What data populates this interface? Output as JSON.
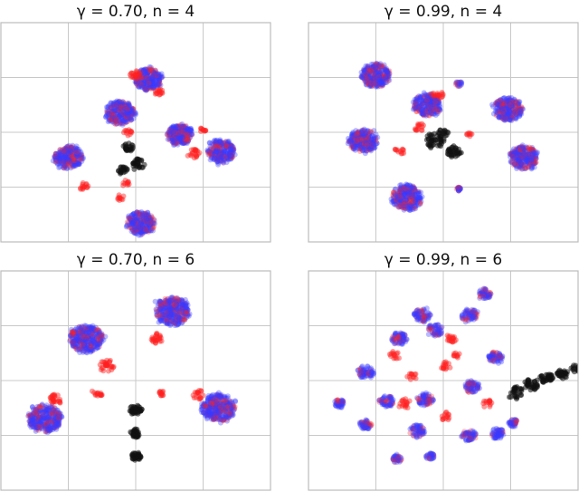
{
  "chart_data": [
    {
      "type": "scatter",
      "title": "γ = 0.70, n = 4",
      "grid": true,
      "colors": {
        "blue": "#3a3aff",
        "red": "#ff2020",
        "black": "#111111"
      },
      "clusters": [
        {
          "color": "blue",
          "cx": -0.3,
          "cy": 0.45,
          "r": 0.28,
          "count": 220
        },
        {
          "color": "blue",
          "cx": 0.25,
          "cy": 1.25,
          "r": 0.26,
          "count": 200
        },
        {
          "color": "blue",
          "cx": 0.85,
          "cy": -0.05,
          "r": 0.24,
          "count": 200
        },
        {
          "color": "blue",
          "cx": 1.65,
          "cy": -0.45,
          "r": 0.27,
          "count": 200
        },
        {
          "color": "blue",
          "cx": -1.3,
          "cy": -0.6,
          "r": 0.27,
          "count": 200
        },
        {
          "color": "blue",
          "cx": 0.1,
          "cy": -2.15,
          "r": 0.27,
          "count": 200
        },
        {
          "color": "red",
          "cx": 0.0,
          "cy": 1.35,
          "r": 0.12,
          "count": 20
        },
        {
          "color": "red",
          "cx": 0.45,
          "cy": 0.95,
          "r": 0.08,
          "count": 15
        },
        {
          "color": "red",
          "cx": 1.1,
          "cy": -0.5,
          "r": 0.12,
          "count": 20
        },
        {
          "color": "red",
          "cx": -1.0,
          "cy": -1.3,
          "r": 0.1,
          "count": 14
        },
        {
          "color": "red",
          "cx": -0.2,
          "cy": -1.2,
          "r": 0.08,
          "count": 10
        },
        {
          "color": "red",
          "cx": -0.15,
          "cy": 0.0,
          "r": 0.08,
          "count": 12
        },
        {
          "color": "red",
          "cx": 1.3,
          "cy": 0.05,
          "r": 0.07,
          "count": 10
        },
        {
          "color": "red",
          "cx": -0.3,
          "cy": -1.55,
          "r": 0.08,
          "count": 10
        },
        {
          "color": "black",
          "cx": -0.15,
          "cy": -0.35,
          "r": 0.1,
          "count": 25
        },
        {
          "color": "black",
          "cx": 0.05,
          "cy": -0.75,
          "r": 0.12,
          "count": 30
        },
        {
          "color": "black",
          "cx": -0.25,
          "cy": -0.9,
          "r": 0.09,
          "count": 20
        }
      ]
    },
    {
      "type": "scatter",
      "title": "γ = 0.99, n = 4",
      "grid": true,
      "colors": {
        "blue": "#3a3aff",
        "red": "#ff2020",
        "black": "#111111"
      },
      "clusters": [
        {
          "color": "blue",
          "cx": -1.3,
          "cy": 1.35,
          "r": 0.28,
          "count": 220
        },
        {
          "color": "blue",
          "cx": -0.3,
          "cy": 0.65,
          "r": 0.27,
          "count": 200
        },
        {
          "color": "blue",
          "cx": 1.25,
          "cy": 0.55,
          "r": 0.27,
          "count": 200
        },
        {
          "color": "blue",
          "cx": -1.55,
          "cy": -0.2,
          "r": 0.27,
          "count": 200
        },
        {
          "color": "blue",
          "cx": 1.55,
          "cy": -0.6,
          "r": 0.27,
          "count": 200
        },
        {
          "color": "blue",
          "cx": -0.7,
          "cy": -1.55,
          "r": 0.29,
          "count": 220
        },
        {
          "color": "blue",
          "cx": 0.3,
          "cy": 1.15,
          "r": 0.06,
          "count": 15
        },
        {
          "color": "blue",
          "cx": 0.3,
          "cy": -1.35,
          "r": 0.05,
          "count": 15
        },
        {
          "color": "red",
          "cx": -0.1,
          "cy": 0.9,
          "r": 0.1,
          "count": 15
        },
        {
          "color": "red",
          "cx": -0.45,
          "cy": 0.1,
          "r": 0.1,
          "count": 15
        },
        {
          "color": "red",
          "cx": -0.85,
          "cy": -0.45,
          "r": 0.1,
          "count": 12
        },
        {
          "color": "red",
          "cx": 0.5,
          "cy": -0.05,
          "r": 0.06,
          "count": 8
        },
        {
          "color": "black",
          "cx": -0.15,
          "cy": -0.2,
          "r": 0.18,
          "count": 45
        },
        {
          "color": "black",
          "cx": 0.2,
          "cy": -0.45,
          "r": 0.14,
          "count": 35
        },
        {
          "color": "black",
          "cx": 0.0,
          "cy": 0.0,
          "r": 0.1,
          "count": 15
        }
      ]
    },
    {
      "type": "scatter",
      "title": "γ = 0.70, n = 6",
      "grid": true,
      "colors": {
        "blue": "#3a3aff",
        "red": "#ff2020",
        "black": "#111111"
      },
      "clusters": [
        {
          "color": "blue",
          "cx": -0.95,
          "cy": 1.0,
          "r": 0.32,
          "count": 260
        },
        {
          "color": "blue",
          "cx": 0.7,
          "cy": 1.65,
          "r": 0.32,
          "count": 260
        },
        {
          "color": "blue",
          "cx": -1.75,
          "cy": -0.9,
          "r": 0.32,
          "count": 260
        },
        {
          "color": "blue",
          "cx": 1.6,
          "cy": -0.65,
          "r": 0.32,
          "count": 260
        },
        {
          "color": "red",
          "cx": -0.55,
          "cy": 0.35,
          "r": 0.15,
          "count": 30
        },
        {
          "color": "red",
          "cx": 0.4,
          "cy": 1.0,
          "r": 0.12,
          "count": 25
        },
        {
          "color": "red",
          "cx": -1.55,
          "cy": -0.45,
          "r": 0.12,
          "count": 25
        },
        {
          "color": "red",
          "cx": -0.75,
          "cy": -0.3,
          "r": 0.1,
          "count": 15
        },
        {
          "color": "red",
          "cx": 0.5,
          "cy": -0.3,
          "r": 0.06,
          "count": 12
        },
        {
          "color": "red",
          "cx": 1.2,
          "cy": -0.35,
          "r": 0.12,
          "count": 18
        },
        {
          "color": "black",
          "cx": 0.0,
          "cy": -0.7,
          "r": 0.12,
          "count": 40
        },
        {
          "color": "black",
          "cx": 0.0,
          "cy": -1.25,
          "r": 0.1,
          "count": 35
        },
        {
          "color": "black",
          "cx": 0.0,
          "cy": -1.8,
          "r": 0.1,
          "count": 35
        }
      ]
    },
    {
      "type": "scatter",
      "title": "γ = 0.99, n = 6",
      "grid": true,
      "colors": {
        "blue": "#3a3aff",
        "red": "#ff2020",
        "black": "#111111"
      },
      "clusters": [
        {
          "color": "blue",
          "cx": 0.8,
          "cy": 2.05,
          "r": 0.12,
          "count": 40
        },
        {
          "color": "blue",
          "cx": -0.4,
          "cy": 1.55,
          "r": 0.16,
          "count": 55
        },
        {
          "color": "blue",
          "cx": 0.5,
          "cy": 1.55,
          "r": 0.16,
          "count": 55
        },
        {
          "color": "blue",
          "cx": -0.85,
          "cy": 1.0,
          "r": 0.15,
          "count": 55
        },
        {
          "color": "blue",
          "cx": -0.15,
          "cy": 1.2,
          "r": 0.14,
          "count": 45
        },
        {
          "color": "blue",
          "cx": 1.0,
          "cy": 0.55,
          "r": 0.14,
          "count": 50
        },
        {
          "color": "blue",
          "cx": -1.5,
          "cy": 0.2,
          "r": 0.15,
          "count": 55
        },
        {
          "color": "blue",
          "cx": -1.1,
          "cy": -0.5,
          "r": 0.14,
          "count": 45
        },
        {
          "color": "blue",
          "cx": -0.35,
          "cy": -0.45,
          "r": 0.15,
          "count": 55
        },
        {
          "color": "blue",
          "cx": 0.55,
          "cy": -0.15,
          "r": 0.14,
          "count": 50
        },
        {
          "color": "blue",
          "cx": -2.0,
          "cy": -0.55,
          "r": 0.1,
          "count": 35
        },
        {
          "color": "blue",
          "cx": -1.5,
          "cy": -1.05,
          "r": 0.12,
          "count": 40
        },
        {
          "color": "blue",
          "cx": -0.5,
          "cy": -1.2,
          "r": 0.15,
          "count": 50
        },
        {
          "color": "blue",
          "cx": 0.5,
          "cy": -1.3,
          "r": 0.14,
          "count": 50
        },
        {
          "color": "blue",
          "cx": 1.05,
          "cy": -1.25,
          "r": 0.13,
          "count": 45
        },
        {
          "color": "blue",
          "cx": 1.35,
          "cy": -1.0,
          "r": 0.09,
          "count": 30
        },
        {
          "color": "blue",
          "cx": -0.9,
          "cy": -1.85,
          "r": 0.1,
          "count": 30
        },
        {
          "color": "blue",
          "cx": -0.25,
          "cy": -1.8,
          "r": 0.08,
          "count": 25
        },
        {
          "color": "red",
          "cx": 0.15,
          "cy": 1.0,
          "r": 0.1,
          "count": 18
        },
        {
          "color": "red",
          "cx": 0.05,
          "cy": 0.35,
          "r": 0.1,
          "count": 15
        },
        {
          "color": "red",
          "cx": -0.6,
          "cy": 0.1,
          "r": 0.1,
          "count": 12
        },
        {
          "color": "red",
          "cx": -0.95,
          "cy": 0.6,
          "r": 0.1,
          "count": 14
        },
        {
          "color": "red",
          "cx": -0.75,
          "cy": -0.55,
          "r": 0.12,
          "count": 18
        },
        {
          "color": "red",
          "cx": 0.85,
          "cy": -0.55,
          "r": 0.1,
          "count": 14
        },
        {
          "color": "red",
          "cx": 0.05,
          "cy": -0.85,
          "r": 0.1,
          "count": 14
        },
        {
          "color": "red",
          "cx": 0.25,
          "cy": 0.6,
          "r": 0.07,
          "count": 10
        },
        {
          "color": "black",
          "cx": 1.4,
          "cy": -0.3,
          "r": 0.14,
          "count": 30
        },
        {
          "color": "black",
          "cx": 1.7,
          "cy": -0.1,
          "r": 0.14,
          "count": 35
        },
        {
          "color": "black",
          "cx": 2.0,
          "cy": 0.05,
          "r": 0.13,
          "count": 35
        },
        {
          "color": "black",
          "cx": 2.3,
          "cy": 0.15,
          "r": 0.12,
          "count": 30
        },
        {
          "color": "black",
          "cx": 2.55,
          "cy": 0.3,
          "r": 0.1,
          "count": 20
        }
      ]
    }
  ]
}
